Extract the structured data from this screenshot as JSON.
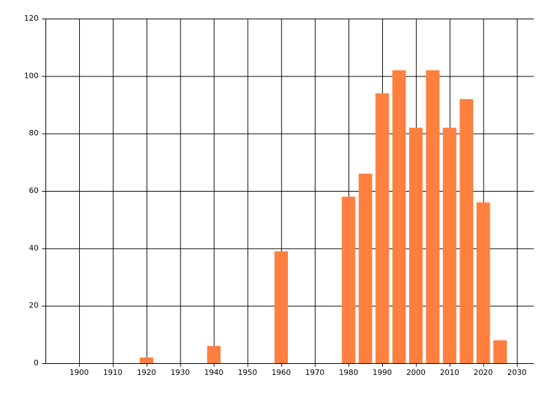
{
  "chart_data": {
    "type": "bar",
    "x": [
      1920,
      1940,
      1960,
      1980,
      1985,
      1990,
      1995,
      2000,
      2005,
      2010,
      2015,
      2020,
      2025
    ],
    "values": [
      2,
      6,
      39,
      58,
      66,
      94,
      102,
      82,
      102,
      82,
      92,
      56,
      8
    ],
    "color": "#ff7f3f",
    "xlim": [
      1890,
      2035
    ],
    "xticks": [
      1900,
      1910,
      1920,
      1930,
      1940,
      1950,
      1960,
      1970,
      1980,
      1990,
      2000,
      2010,
      2020,
      2030
    ],
    "ylim": [
      0,
      120
    ],
    "yticks": [
      0,
      20,
      40,
      60,
      80,
      100,
      120
    ],
    "grid": true
  }
}
